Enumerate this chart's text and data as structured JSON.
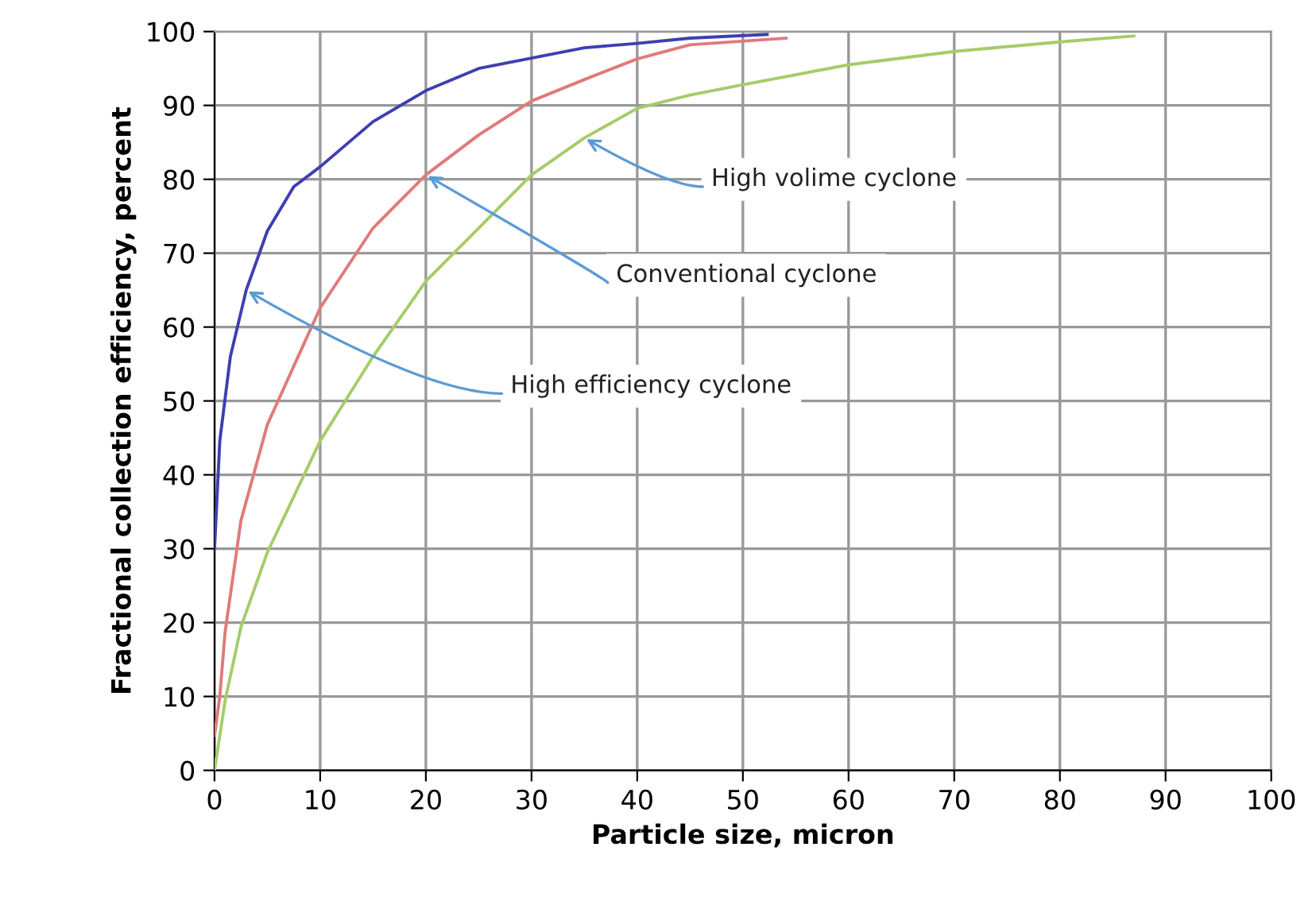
{
  "chart_data": {
    "type": "line",
    "xlabel": "Particle size, micron",
    "ylabel": "Fractional collection efficiency, percent",
    "xlim": [
      0,
      100
    ],
    "ylim": [
      0,
      100
    ],
    "xticks": [
      0,
      10,
      20,
      30,
      40,
      50,
      60,
      70,
      80,
      90,
      100
    ],
    "yticks": [
      0,
      10,
      20,
      30,
      40,
      50,
      60,
      70,
      80,
      90,
      100
    ],
    "grid": true,
    "annotations": [
      {
        "text": "High efficiency cyclone",
        "x": 3,
        "y": 65
      },
      {
        "text": "Conventional cyclone",
        "x": 20,
        "y": 80.6
      },
      {
        "text": "High volime cyclone",
        "x": 35,
        "y": 85.6
      }
    ],
    "legend": false,
    "marker": "none",
    "line_style": "solid",
    "series": [
      {
        "color": "#3f3fb0",
        "x": [
          0,
          0.5,
          1.5,
          3,
          5,
          7.5,
          10,
          15,
          20,
          25,
          30,
          35,
          40,
          45,
          52.3
        ],
        "values": [
          30,
          44.6,
          56,
          65,
          73,
          79,
          81.7,
          87.8,
          92,
          95,
          96.4,
          97.8,
          98.4,
          99.1,
          99.6
        ]
      },
      {
        "color": "#e07a7a",
        "x": [
          0,
          0.5,
          1,
          2.5,
          5,
          7.5,
          10,
          15,
          20,
          25,
          30,
          35,
          40,
          45,
          54.1
        ],
        "values": [
          4.7,
          10,
          18.7,
          33.8,
          46.8,
          54.7,
          62.6,
          73.4,
          80.6,
          86,
          90.6,
          93.5,
          96.3,
          98.2,
          99.1
        ]
      },
      {
        "color": "#a6cc6a",
        "x": [
          0,
          1,
          2.5,
          5,
          10,
          15,
          20,
          25,
          30,
          35,
          40,
          45,
          50,
          60,
          70,
          80,
          87
        ],
        "values": [
          0,
          9.4,
          19.4,
          29.5,
          44.6,
          56,
          66.2,
          73.4,
          80.6,
          85.6,
          89.6,
          91.4,
          92.8,
          95.5,
          97.3,
          98.6,
          99.4
        ]
      }
    ]
  }
}
